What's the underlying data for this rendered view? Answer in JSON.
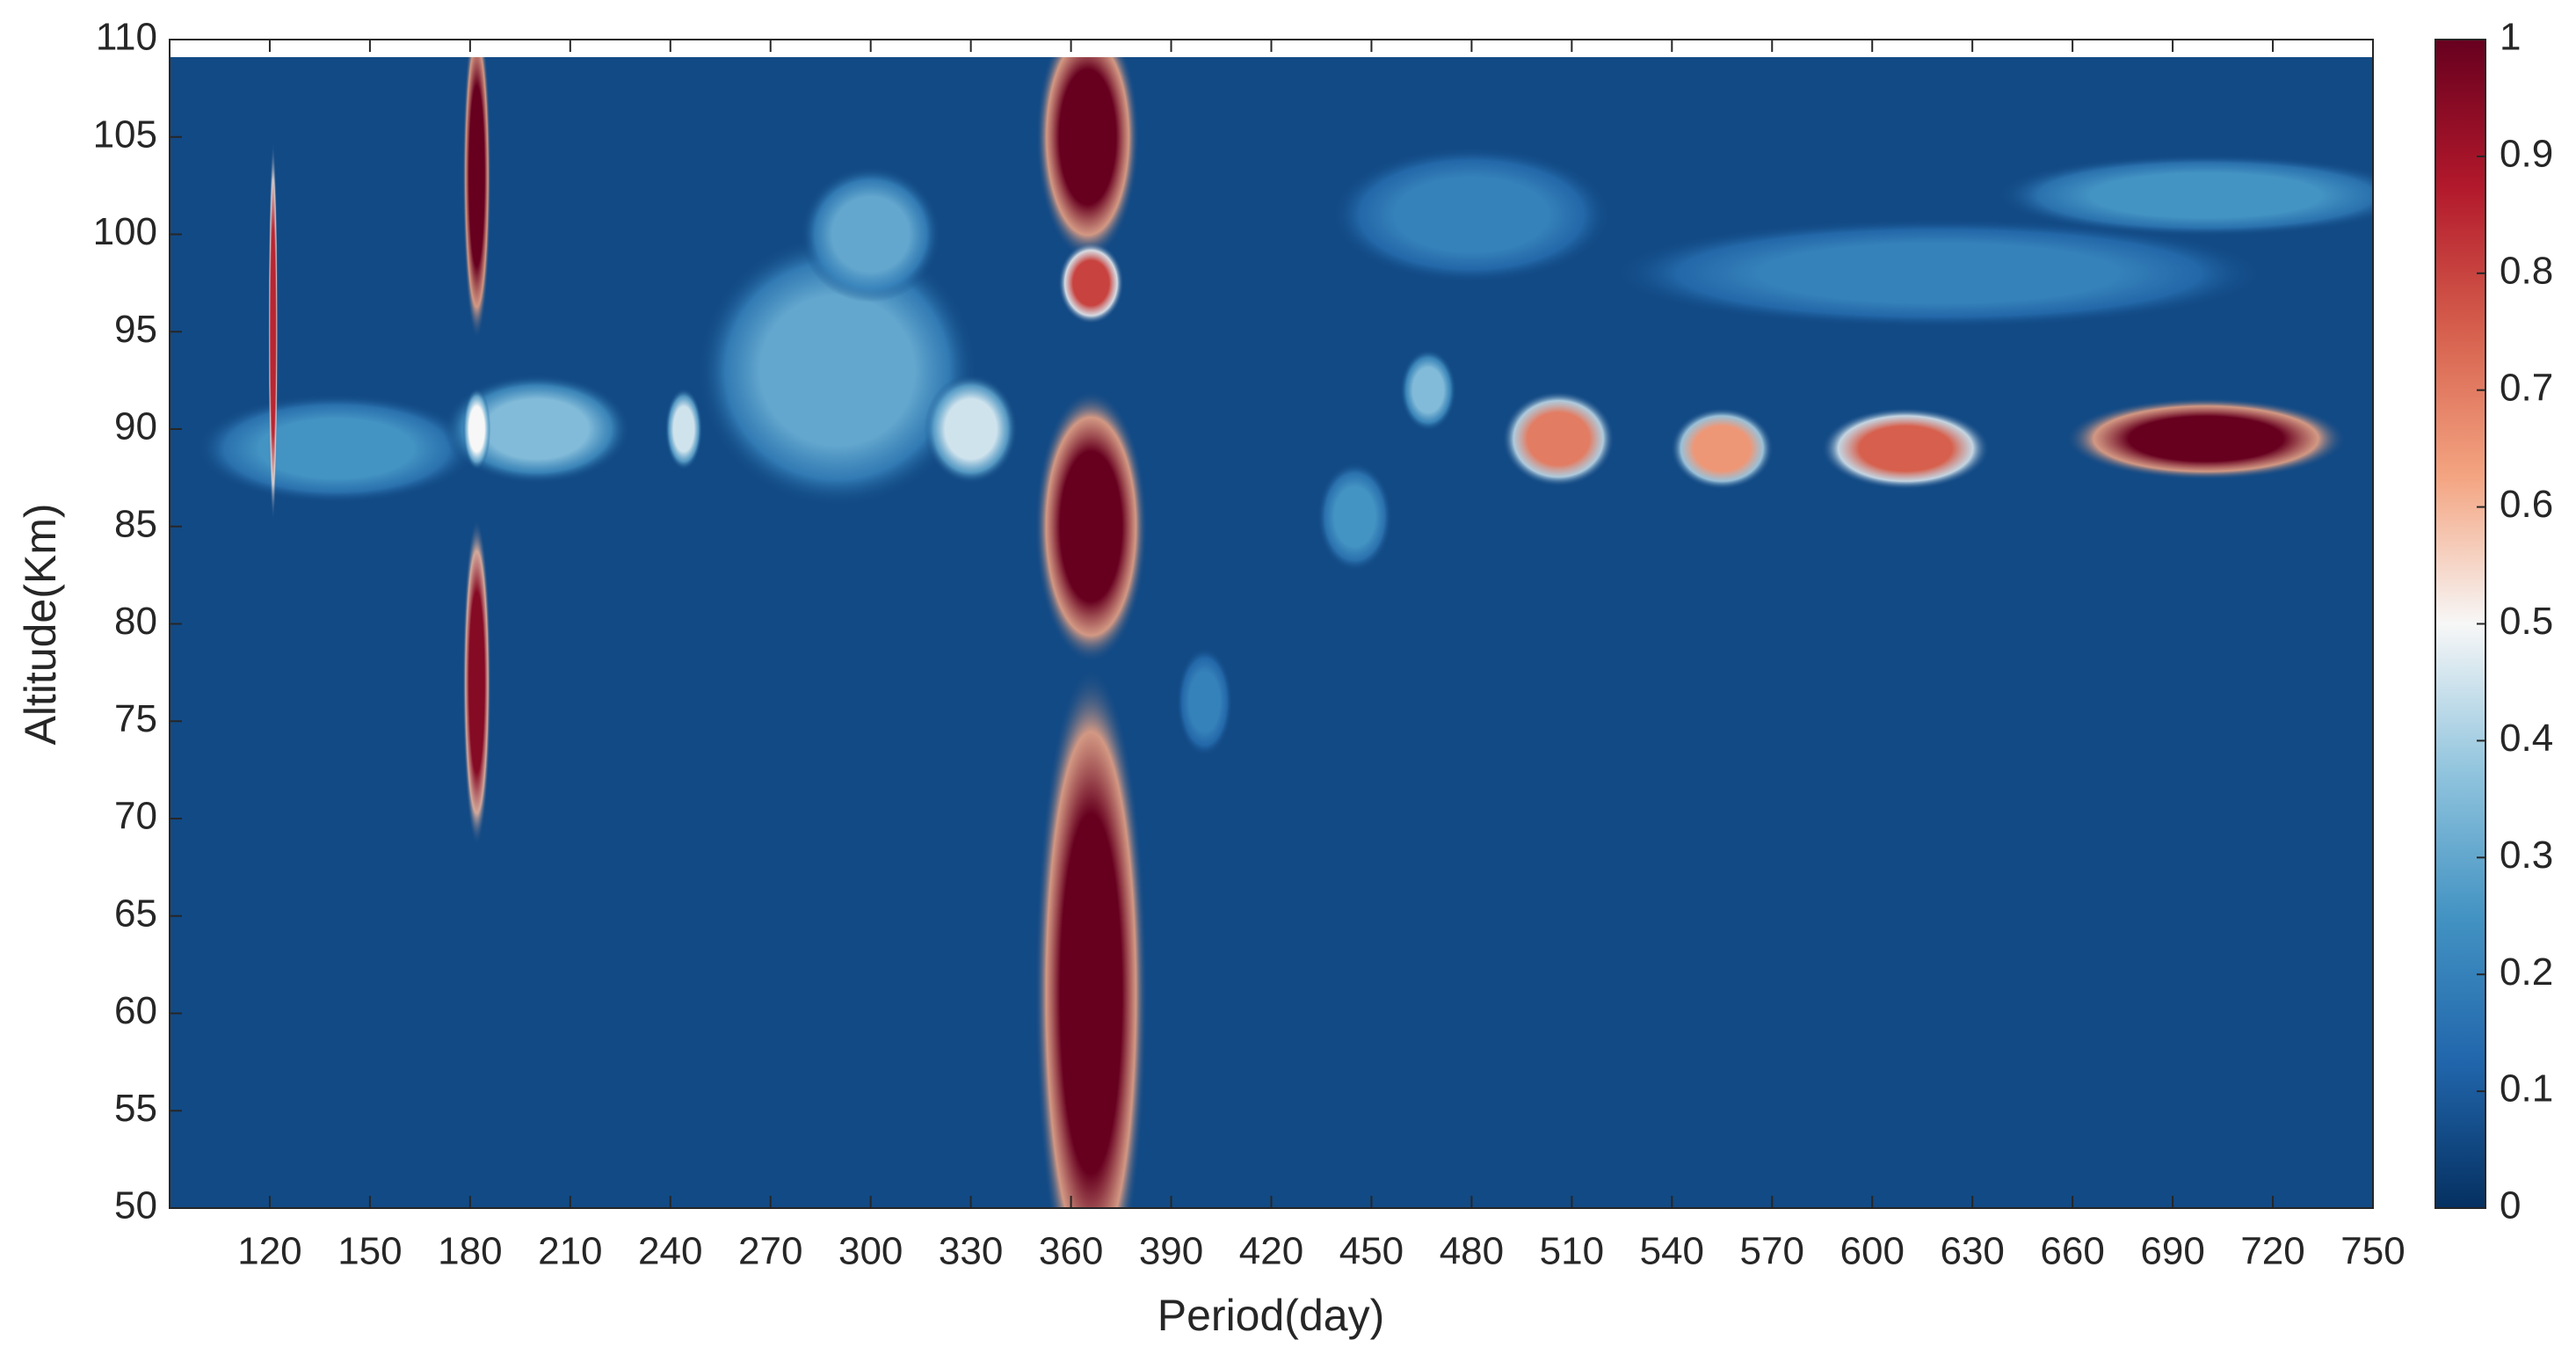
{
  "chart_data": {
    "type": "heatmap",
    "x_label": "Period(day)",
    "y_label": "Altitude(Km)",
    "xlim": [
      90,
      750
    ],
    "ylim": [
      50,
      110
    ],
    "clim": [
      0,
      1
    ],
    "xticks": [
      120,
      150,
      180,
      210,
      240,
      270,
      300,
      330,
      360,
      390,
      420,
      450,
      480,
      510,
      540,
      570,
      600,
      630,
      660,
      690,
      720,
      750
    ],
    "yticks": [
      50,
      55,
      60,
      65,
      70,
      75,
      80,
      85,
      90,
      95,
      100,
      105,
      110
    ],
    "cticks": [
      0,
      0.1,
      0.2,
      0.3,
      0.4,
      0.5,
      0.6,
      0.7,
      0.8,
      0.9,
      1
    ],
    "colorscale": [
      "#053061",
      "#2166ac",
      "#4393c3",
      "#92c5de",
      "#f7f7f7",
      "#f4a582",
      "#d6604d",
      "#b2182b",
      "#67001f"
    ],
    "base_value": 0.06,
    "x": [
      140,
      200,
      290,
      300,
      330,
      244,
      480,
      620,
      700,
      400,
      445,
      467,
      121,
      182,
      182,
      182,
      365,
      366,
      366,
      366,
      506,
      555,
      610,
      700
    ],
    "y": [
      89,
      90,
      93,
      100,
      90,
      90,
      101,
      98,
      102,
      76,
      85.5,
      92,
      95,
      103,
      77,
      90,
      105,
      97.5,
      85,
      61,
      89.5,
      89,
      89,
      89.5
    ],
    "x_width": [
      60,
      40,
      60,
      30,
      20,
      8,
      60,
      140,
      90,
      12,
      16,
      12,
      2,
      6,
      6,
      6,
      22,
      14,
      24,
      24,
      24,
      22,
      36,
      60
    ],
    "y_height": [
      4,
      4,
      10,
      5,
      4,
      3,
      5,
      4,
      3,
      4,
      4,
      3,
      14,
      12,
      12,
      3,
      9,
      3,
      10,
      24,
      3.5,
      3,
      3,
      3
    ],
    "values": [
      0.25,
      0.35,
      0.3,
      0.3,
      0.45,
      0.45,
      0.2,
      0.2,
      0.25,
      0.2,
      0.25,
      0.35,
      0.85,
      1,
      0.95,
      0.5,
      1,
      0.8,
      1,
      1,
      0.7,
      0.65,
      0.75,
      1
    ]
  }
}
